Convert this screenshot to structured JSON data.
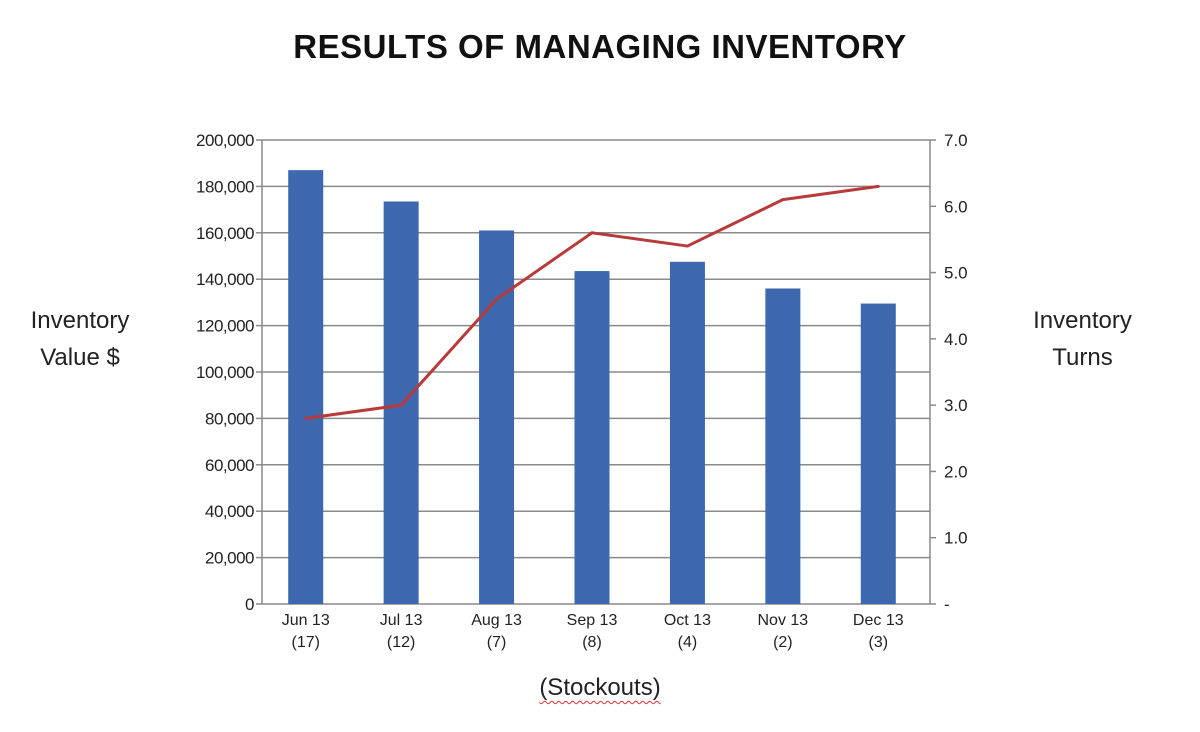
{
  "chart_data": {
    "type": "bar+line",
    "title": "RESULTS OF MANAGING INVENTORY",
    "xlabel": "(Stockouts)",
    "ylabel_left": [
      "Inventory",
      "Value $"
    ],
    "ylabel_right": [
      "Inventory",
      "Turns"
    ],
    "categories": [
      {
        "month": "Jun 13",
        "stockouts": "(17)"
      },
      {
        "month": "Jul 13",
        "stockouts": "(12)"
      },
      {
        "month": "Aug 13",
        "stockouts": "(7)"
      },
      {
        "month": "Sep 13",
        "stockouts": "(8)"
      },
      {
        "month": "Oct 13",
        "stockouts": "(4)"
      },
      {
        "month": "Nov 13",
        "stockouts": "(2)"
      },
      {
        "month": "Dec 13",
        "stockouts": "(3)"
      }
    ],
    "series": [
      {
        "name": "Inventory Value $",
        "type": "bar",
        "axis": "left",
        "color": "#3d68ad",
        "values": [
          187000,
          173500,
          161000,
          143500,
          147500,
          136000,
          129500
        ]
      },
      {
        "name": "Inventory Turns",
        "type": "line",
        "axis": "right",
        "color": "#b83a3a",
        "values": [
          2.8,
          3.0,
          4.6,
          5.6,
          5.4,
          6.1,
          6.3
        ]
      }
    ],
    "ylim_left": [
      0,
      200000
    ],
    "ylim_right": [
      0,
      7
    ],
    "left_ticks": [
      {
        "v": 0,
        "label": "0"
      },
      {
        "v": 20000,
        "label": "20,000"
      },
      {
        "v": 40000,
        "label": "40,000"
      },
      {
        "v": 60000,
        "label": "60,000"
      },
      {
        "v": 80000,
        "label": "80,000"
      },
      {
        "v": 100000,
        "label": "100,000"
      },
      {
        "v": 120000,
        "label": "120,000"
      },
      {
        "v": 140000,
        "label": "140,000"
      },
      {
        "v": 160000,
        "label": "160,000"
      },
      {
        "v": 180000,
        "label": "180,000"
      },
      {
        "v": 200000,
        "label": "200,000"
      }
    ],
    "right_ticks": [
      {
        "v": 0,
        "label": "-"
      },
      {
        "v": 1,
        "label": "1.0"
      },
      {
        "v": 2,
        "label": "2.0"
      },
      {
        "v": 3,
        "label": "3.0"
      },
      {
        "v": 4,
        "label": "4.0"
      },
      {
        "v": 5,
        "label": "5.0"
      },
      {
        "v": 6,
        "label": "6.0"
      },
      {
        "v": 7,
        "label": "7.0"
      }
    ],
    "grid": true,
    "legend": "none"
  }
}
